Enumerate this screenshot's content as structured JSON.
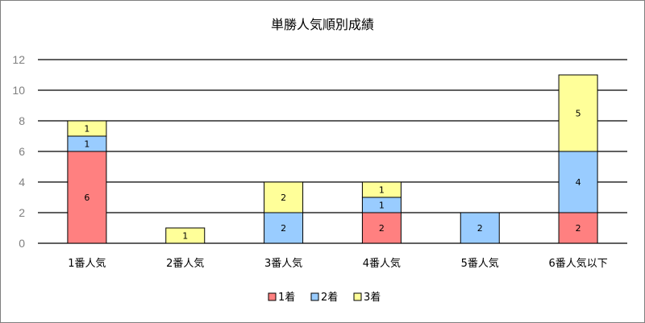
{
  "chart_data": {
    "type": "bar",
    "stacked": true,
    "title": "単勝人気順別成績",
    "categories": [
      "1番人気",
      "2番人気",
      "3番人気",
      "4番人気",
      "5番人気",
      "6番人気以下"
    ],
    "series": [
      {
        "name": "1着",
        "color": "#ff8080",
        "values": [
          6,
          0,
          0,
          2,
          0,
          2
        ]
      },
      {
        "name": "2着",
        "color": "#99ccff",
        "values": [
          1,
          0,
          2,
          1,
          2,
          4
        ]
      },
      {
        "name": "3着",
        "color": "#ffff99",
        "values": [
          1,
          1,
          2,
          1,
          0,
          5
        ]
      }
    ],
    "ylim": [
      0,
      12
    ],
    "yticks": [
      0,
      2,
      4,
      6,
      8,
      10,
      12
    ],
    "grid": true,
    "legend": "bottom",
    "data_labels": true
  }
}
